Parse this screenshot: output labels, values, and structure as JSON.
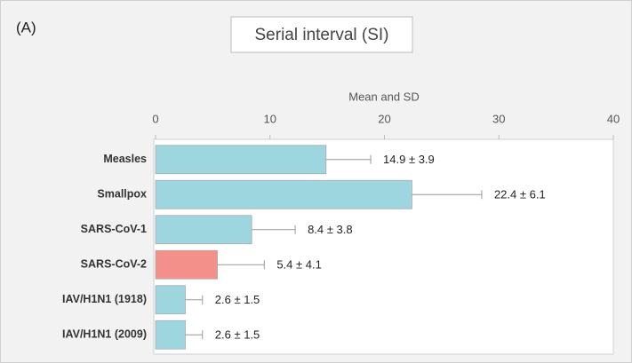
{
  "chart_data": {
    "type": "hbar_error",
    "panel_label": "(A)",
    "title": "Serial interval (SI)",
    "x_label": "Mean and SD",
    "categories": [
      "Measles",
      "Smallpox",
      "SARS-CoV-1",
      "SARS-CoV-2",
      "IAV/H1N1 (1918)",
      "IAV/H1N1 (2009)"
    ],
    "values": [
      14.9,
      22.4,
      8.4,
      5.4,
      2.6,
      2.6
    ],
    "errors": [
      3.9,
      6.1,
      3.8,
      4.1,
      1.5,
      1.5
    ],
    "value_labels": [
      "14.9 ± 3.9",
      "22.4 ± 6.1",
      "8.4 ± 3.8",
      "5.4 ± 4.1",
      "2.6 ± 1.5",
      "2.6 ± 1.5"
    ],
    "colors": [
      "#9ed6df",
      "#9ed6df",
      "#9ed6df",
      "#f4908a",
      "#9ed6df",
      "#9ed6df"
    ],
    "xlim": [
      0,
      40
    ],
    "xticks": [
      0,
      10,
      20,
      30,
      40
    ],
    "x_axis_position": "top",
    "grid": false
  }
}
